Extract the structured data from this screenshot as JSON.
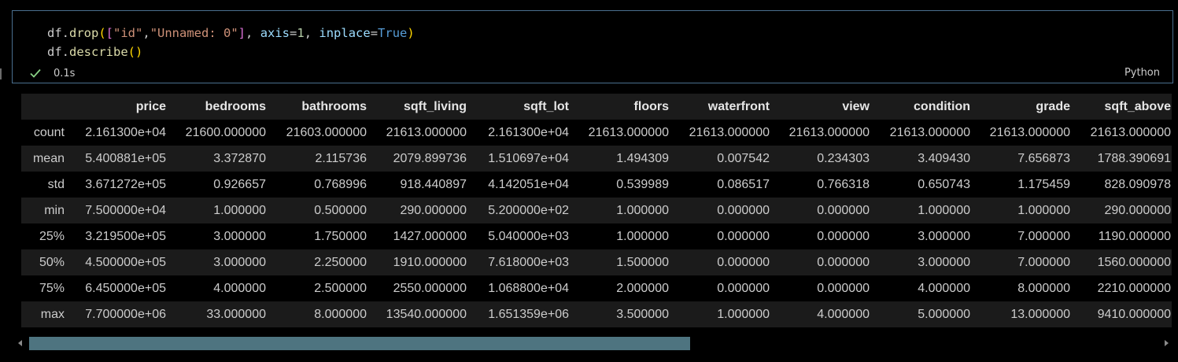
{
  "cell": {
    "code_tokens": [
      [
        {
          "t": "df.",
          "c": ""
        },
        {
          "t": "drop",
          "c": "tok-fn"
        },
        {
          "t": "(",
          "c": "tok-br1"
        },
        {
          "t": "[",
          "c": "tok-br2"
        },
        {
          "t": "\"id\"",
          "c": "tok-str"
        },
        {
          "t": ",",
          "c": ""
        },
        {
          "t": "\"Unnamed: 0\"",
          "c": "tok-str"
        },
        {
          "t": "]",
          "c": "tok-br2"
        },
        {
          "t": ", ",
          "c": ""
        },
        {
          "t": "axis",
          "c": "tok-param"
        },
        {
          "t": "=",
          "c": ""
        },
        {
          "t": "1",
          "c": "tok-num"
        },
        {
          "t": ", ",
          "c": ""
        },
        {
          "t": "inplace",
          "c": "tok-param"
        },
        {
          "t": "=",
          "c": ""
        },
        {
          "t": "True",
          "c": "tok-kw"
        },
        {
          "t": ")",
          "c": "tok-br1"
        }
      ],
      [
        {
          "t": "df.",
          "c": ""
        },
        {
          "t": "describe",
          "c": "tok-fn"
        },
        {
          "t": "()",
          "c": "tok-br1"
        }
      ]
    ],
    "exec_time": "0.1s",
    "language": "Python",
    "status_icon": "check-icon",
    "success_color": "#89d185"
  },
  "table": {
    "columns": [
      "price",
      "bedrooms",
      "bathrooms",
      "sqft_living",
      "sqft_lot",
      "floors",
      "waterfront",
      "view",
      "condition",
      "grade",
      "sqft_above"
    ],
    "rows": [
      {
        "label": "count",
        "values": [
          "2.161300e+04",
          "21600.000000",
          "21603.000000",
          "21613.000000",
          "2.161300e+04",
          "21613.000000",
          "21613.000000",
          "21613.000000",
          "21613.000000",
          "21613.000000",
          "21613.000000"
        ]
      },
      {
        "label": "mean",
        "values": [
          "5.400881e+05",
          "3.372870",
          "2.115736",
          "2079.899736",
          "1.510697e+04",
          "1.494309",
          "0.007542",
          "0.234303",
          "3.409430",
          "7.656873",
          "1788.390691"
        ]
      },
      {
        "label": "std",
        "values": [
          "3.671272e+05",
          "0.926657",
          "0.768996",
          "918.440897",
          "4.142051e+04",
          "0.539989",
          "0.086517",
          "0.766318",
          "0.650743",
          "1.175459",
          "828.090978"
        ]
      },
      {
        "label": "min",
        "values": [
          "7.500000e+04",
          "1.000000",
          "0.500000",
          "290.000000",
          "5.200000e+02",
          "1.000000",
          "0.000000",
          "0.000000",
          "1.000000",
          "1.000000",
          "290.000000"
        ]
      },
      {
        "label": "25%",
        "values": [
          "3.219500e+05",
          "3.000000",
          "1.750000",
          "1427.000000",
          "5.040000e+03",
          "1.000000",
          "0.000000",
          "0.000000",
          "3.000000",
          "7.000000",
          "1190.000000"
        ]
      },
      {
        "label": "50%",
        "values": [
          "4.500000e+05",
          "3.000000",
          "2.250000",
          "1910.000000",
          "7.618000e+03",
          "1.500000",
          "0.000000",
          "0.000000",
          "3.000000",
          "7.000000",
          "1560.000000"
        ]
      },
      {
        "label": "75%",
        "values": [
          "6.450000e+05",
          "4.000000",
          "2.500000",
          "2550.000000",
          "1.068800e+04",
          "2.000000",
          "0.000000",
          "0.000000",
          "4.000000",
          "8.000000",
          "2210.000000"
        ]
      },
      {
        "label": "max",
        "values": [
          "7.700000e+06",
          "33.000000",
          "8.000000",
          "13540.000000",
          "1.651359e+06",
          "3.500000",
          "1.000000",
          "4.000000",
          "5.000000",
          "13.000000",
          "9410.000000"
        ]
      }
    ]
  },
  "scrollbar": {
    "visible_fraction": 0.583
  }
}
